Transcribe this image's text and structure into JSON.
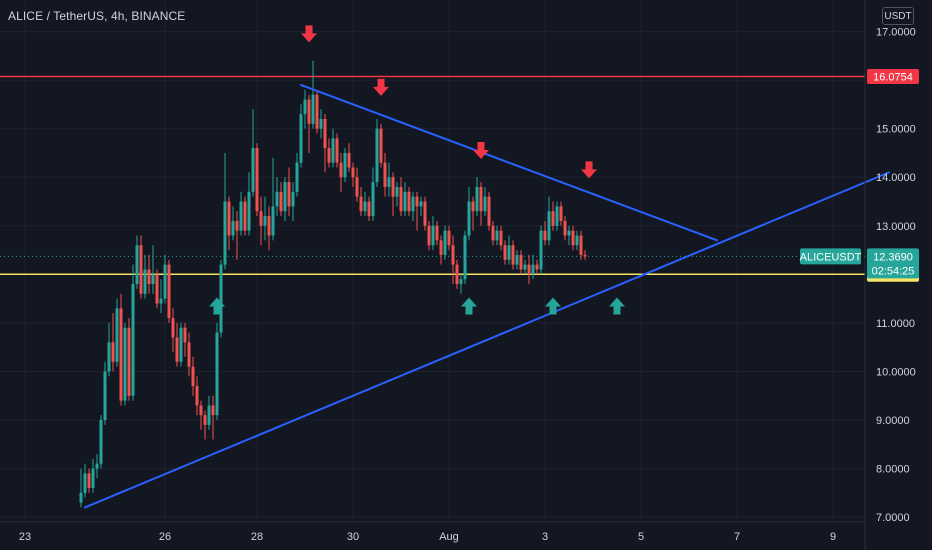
{
  "header": {
    "title": "ALICE / TetherUS, 4h, BINANCE",
    "currency_button": "USDT"
  },
  "colors": {
    "background": "#131722",
    "grid": "#1e222d",
    "up": "#26a69a",
    "down": "#ef5350",
    "resistance": "#f23645",
    "support": "#f7e463",
    "trendline": "#2962ff",
    "text": "#d1d4dc"
  },
  "chart_data": {
    "type": "candlestick",
    "symbol": "ALICEUSDT",
    "interval": "4h",
    "y_axis": {
      "range": [
        6.9,
        17.65
      ],
      "ticks": [
        {
          "value": 7,
          "label": "7.0000"
        },
        {
          "value": 8,
          "label": "8.0000"
        },
        {
          "value": 9,
          "label": "9.0000"
        },
        {
          "value": 10,
          "label": "10.0000"
        },
        {
          "value": 11,
          "label": "11.0000"
        },
        {
          "value": 12,
          "label": "12.0000"
        },
        {
          "value": 13,
          "label": "13.0000"
        },
        {
          "value": 14,
          "label": "14.0000"
        },
        {
          "value": 15,
          "label": "15.0000"
        },
        {
          "value": 16,
          "label": "16.0000"
        },
        {
          "value": 17,
          "label": "17.0000"
        }
      ]
    },
    "x_axis": {
      "ticks": [
        {
          "bar": -14,
          "label": "23"
        },
        {
          "bar": 21,
          "label": "26"
        },
        {
          "bar": 44,
          "label": "28"
        },
        {
          "bar": 68,
          "label": "30"
        },
        {
          "bar": 92,
          "label": "Aug"
        },
        {
          "bar": 116,
          "label": "3"
        },
        {
          "bar": 140,
          "label": "5"
        },
        {
          "bar": 164,
          "label": "7"
        },
        {
          "bar": 188,
          "label": "9"
        }
      ]
    },
    "candles": [
      [
        7.3,
        7.5,
        7.2,
        8.0
      ],
      [
        7.5,
        7.9,
        7.4,
        8.1
      ],
      [
        7.9,
        7.6,
        7.5,
        8.0
      ],
      [
        7.6,
        8.0,
        7.5,
        8.2
      ],
      [
        8.0,
        8.1,
        7.8,
        8.3
      ],
      [
        8.1,
        9.0,
        8.0,
        9.1
      ],
      [
        9.0,
        10.0,
        8.9,
        10.2
      ],
      [
        10.0,
        10.6,
        9.9,
        11.0
      ],
      [
        10.6,
        10.2,
        10.0,
        11.2
      ],
      [
        10.2,
        11.3,
        10.1,
        11.5
      ],
      [
        11.3,
        9.4,
        9.3,
        11.6
      ],
      [
        9.4,
        10.9,
        9.3,
        11.0
      ],
      [
        10.9,
        9.5,
        9.4,
        11.1
      ],
      [
        9.5,
        11.8,
        9.4,
        12.2
      ],
      [
        11.8,
        12.6,
        11.7,
        12.8
      ],
      [
        12.6,
        11.6,
        11.5,
        12.8
      ],
      [
        11.6,
        12.1,
        11.5,
        12.4
      ],
      [
        12.1,
        11.8,
        11.6,
        12.4
      ],
      [
        11.8,
        12.0,
        11.6,
        12.6
      ],
      [
        12.0,
        11.4,
        11.3,
        12.1
      ],
      [
        11.4,
        11.5,
        11.2,
        11.9
      ],
      [
        11.5,
        12.2,
        11.4,
        12.4
      ],
      [
        12.2,
        11.1,
        11.0,
        12.3
      ],
      [
        11.1,
        10.7,
        10.4,
        11.3
      ],
      [
        10.7,
        10.2,
        10.1,
        11.0
      ],
      [
        10.2,
        10.9,
        10.1,
        11.0
      ],
      [
        10.9,
        10.6,
        10.3,
        11.0
      ],
      [
        10.6,
        10.1,
        9.9,
        10.8
      ],
      [
        10.1,
        9.7,
        9.5,
        10.3
      ],
      [
        9.7,
        9.3,
        9.1,
        9.9
      ],
      [
        9.3,
        9.1,
        8.8,
        9.4
      ],
      [
        9.1,
        8.9,
        8.6,
        9.2
      ],
      [
        8.9,
        9.3,
        8.8,
        9.5
      ],
      [
        9.3,
        9.1,
        8.6,
        9.5
      ],
      [
        9.1,
        10.8,
        9.0,
        11.0
      ],
      [
        10.8,
        12.2,
        10.7,
        12.3
      ],
      [
        12.2,
        13.5,
        12.1,
        14.5
      ],
      [
        13.5,
        12.8,
        12.5,
        13.6
      ],
      [
        12.8,
        13.1,
        12.7,
        13.4
      ],
      [
        13.1,
        12.9,
        12.3,
        13.3
      ],
      [
        12.9,
        13.5,
        12.8,
        13.7
      ],
      [
        13.5,
        12.9,
        12.8,
        13.6
      ],
      [
        12.9,
        13.7,
        12.8,
        14.1
      ],
      [
        13.7,
        14.6,
        13.6,
        15.4
      ],
      [
        14.6,
        13.3,
        13.2,
        14.7
      ],
      [
        13.3,
        13.0,
        12.6,
        13.6
      ],
      [
        13.0,
        13.2,
        12.7,
        13.6
      ],
      [
        13.2,
        12.8,
        12.5,
        13.4
      ],
      [
        12.8,
        13.4,
        12.7,
        14.4
      ],
      [
        13.4,
        13.7,
        13.2,
        14.0
      ],
      [
        13.7,
        13.3,
        13.2,
        13.9
      ],
      [
        13.3,
        13.9,
        13.1,
        14.0
      ],
      [
        13.9,
        13.4,
        13.2,
        14.2
      ],
      [
        13.4,
        13.7,
        13.1,
        13.9
      ],
      [
        13.7,
        14.3,
        13.6,
        14.5
      ],
      [
        14.3,
        15.3,
        14.2,
        15.5
      ],
      [
        15.3,
        15.6,
        15.0,
        15.8
      ],
      [
        15.6,
        15.1,
        14.5,
        15.7
      ],
      [
        15.1,
        15.7,
        15.0,
        16.4
      ],
      [
        15.7,
        15.0,
        14.9,
        15.8
      ],
      [
        15.0,
        15.2,
        14.8,
        15.4
      ],
      [
        15.2,
        14.6,
        14.1,
        15.3
      ],
      [
        14.6,
        14.3,
        14.2,
        14.8
      ],
      [
        14.3,
        14.8,
        14.2,
        15.0
      ],
      [
        14.8,
        14.3,
        14.2,
        14.9
      ],
      [
        14.3,
        14.0,
        13.7,
        14.5
      ],
      [
        14.0,
        14.5,
        13.9,
        14.6
      ],
      [
        14.5,
        14.2,
        14.1,
        14.7
      ],
      [
        14.2,
        14.0,
        13.8,
        14.3
      ],
      [
        14.0,
        13.6,
        13.5,
        14.2
      ],
      [
        13.6,
        13.3,
        13.2,
        13.8
      ],
      [
        13.3,
        13.5,
        13.2,
        13.7
      ],
      [
        13.5,
        13.2,
        13.1,
        13.6
      ],
      [
        13.2,
        13.9,
        13.1,
        14.2
      ],
      [
        13.9,
        15.0,
        13.8,
        15.2
      ],
      [
        15.0,
        14.3,
        14.2,
        15.1
      ],
      [
        14.3,
        13.8,
        13.6,
        14.5
      ],
      [
        13.8,
        14.0,
        13.6,
        14.3
      ],
      [
        14.0,
        13.6,
        13.2,
        14.1
      ],
      [
        13.6,
        13.8,
        13.4,
        13.9
      ],
      [
        13.8,
        13.3,
        13.2,
        14.0
      ],
      [
        13.3,
        13.7,
        13.2,
        13.9
      ],
      [
        13.7,
        13.3,
        13.2,
        13.8
      ],
      [
        13.3,
        13.6,
        13.1,
        13.7
      ],
      [
        13.6,
        13.4,
        12.9,
        13.7
      ],
      [
        13.4,
        13.5,
        13.2,
        13.6
      ],
      [
        13.5,
        13.0,
        12.9,
        13.6
      ],
      [
        13.0,
        12.6,
        12.5,
        13.1
      ],
      [
        12.6,
        13.0,
        12.5,
        13.2
      ],
      [
        13.0,
        12.7,
        12.6,
        13.1
      ],
      [
        12.7,
        12.4,
        12.2,
        12.8
      ],
      [
        12.4,
        12.9,
        12.3,
        13.0
      ],
      [
        12.9,
        12.6,
        12.5,
        13.0
      ],
      [
        12.6,
        12.2,
        11.8,
        12.8
      ],
      [
        12.2,
        11.8,
        11.7,
        12.3
      ],
      [
        11.8,
        11.9,
        11.6,
        12.0
      ],
      [
        11.9,
        12.8,
        11.8,
        12.9
      ],
      [
        12.8,
        13.5,
        12.7,
        13.8
      ],
      [
        13.5,
        13.3,
        12.9,
        13.6
      ],
      [
        13.3,
        13.8,
        13.2,
        14.0
      ],
      [
        13.8,
        13.3,
        13.0,
        13.9
      ],
      [
        13.3,
        13.6,
        13.2,
        13.8
      ],
      [
        13.6,
        13.0,
        12.9,
        13.7
      ],
      [
        13.0,
        12.7,
        12.6,
        13.1
      ],
      [
        12.7,
        12.9,
        12.6,
        13.0
      ],
      [
        12.9,
        12.6,
        12.5,
        13.0
      ],
      [
        12.6,
        12.3,
        12.2,
        12.7
      ],
      [
        12.3,
        12.6,
        12.2,
        12.8
      ],
      [
        12.6,
        12.2,
        12.1,
        12.7
      ],
      [
        12.2,
        12.4,
        12.1,
        12.5
      ],
      [
        12.4,
        12.1,
        12.0,
        12.5
      ],
      [
        12.1,
        12.2,
        12.0,
        12.3
      ],
      [
        12.2,
        12.0,
        11.8,
        12.4
      ],
      [
        12.0,
        12.2,
        11.9,
        12.4
      ],
      [
        12.2,
        12.1,
        12.0,
        12.3
      ],
      [
        12.1,
        12.9,
        12.0,
        13.0
      ],
      [
        12.9,
        12.7,
        12.6,
        13.1
      ],
      [
        12.7,
        13.3,
        12.6,
        13.6
      ],
      [
        13.3,
        13.0,
        12.9,
        13.5
      ],
      [
        13.0,
        13.4,
        12.9,
        13.5
      ],
      [
        13.4,
        13.1,
        13.0,
        13.5
      ],
      [
        13.1,
        12.8,
        12.7,
        13.2
      ],
      [
        12.8,
        12.9,
        12.6,
        13.0
      ],
      [
        12.9,
        12.6,
        12.5,
        13.0
      ],
      [
        12.6,
        12.8,
        12.5,
        12.9
      ],
      [
        12.8,
        12.4,
        12.3,
        12.9
      ],
      [
        12.4,
        12.37,
        12.3,
        12.5
      ]
    ],
    "candle_format": [
      "open",
      "close",
      "low",
      "high"
    ],
    "horizontal_lines": [
      {
        "name": "resistance",
        "value": 16.0754,
        "label": "16.0754",
        "color": "#f23645"
      },
      {
        "name": "support",
        "value": 12.0033,
        "label": "12.0033",
        "color": "#f7e463"
      }
    ],
    "trendlines": [
      {
        "name": "rising-support",
        "from": {
          "bar": 1,
          "value": 7.2
        },
        "to": {
          "bar": 202,
          "value": 14.1
        }
      },
      {
        "name": "falling-resistance",
        "from": {
          "bar": 55,
          "value": 15.9
        },
        "to": {
          "bar": 159,
          "value": 12.7
        }
      }
    ],
    "markers": [
      {
        "type": "down",
        "bar": 57,
        "value": 16.9
      },
      {
        "type": "down",
        "bar": 75,
        "value": 15.8
      },
      {
        "type": "down",
        "bar": 100,
        "value": 14.5
      },
      {
        "type": "down",
        "bar": 127,
        "value": 14.1
      },
      {
        "type": "up",
        "bar": 34,
        "value": 11.4
      },
      {
        "type": "up",
        "bar": 97,
        "value": 11.4
      },
      {
        "type": "up",
        "bar": 118,
        "value": 11.4
      },
      {
        "type": "up",
        "bar": 134,
        "value": 11.4
      }
    ],
    "last_price": {
      "symbol_label": "ALICEUSDT",
      "price_label": "12.3690",
      "value": 12.369,
      "countdown": "02:54:25"
    }
  }
}
